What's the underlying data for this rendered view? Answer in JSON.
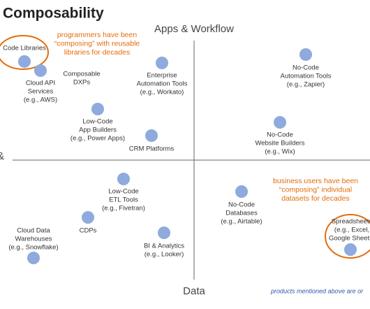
{
  "title": "Composability",
  "axes": {
    "top": "Apps & Workflow",
    "bottom": "Data",
    "left": "&"
  },
  "annotations": [
    {
      "lines": [
        "programmers have been",
        "“composing” with reusable",
        "libraries for decades"
      ]
    },
    {
      "lines": [
        "business users have been",
        "“composing” individual",
        "datasets for decades"
      ]
    }
  ],
  "nodes": [
    {
      "lines": [
        "Code Libraries"
      ]
    },
    {
      "lines": [
        "Cloud API",
        "Services",
        "(e.g., AWS)"
      ]
    },
    {
      "lines": [
        "Composable",
        "DXPs"
      ]
    },
    {
      "lines": [
        "Low-Code",
        "App Builders",
        "(e.g., Power Apps)"
      ]
    },
    {
      "lines": [
        "Enterprise",
        "Automation Tools",
        "(e.g., Workato)"
      ]
    },
    {
      "lines": [
        "CRM Platforms"
      ]
    },
    {
      "lines": [
        "No-Code",
        "Automation Tools",
        "(e.g., Zapier)"
      ]
    },
    {
      "lines": [
        "No-Code",
        "Website Builders",
        "(e.g., Wix)"
      ]
    },
    {
      "lines": [
        "Low-Code",
        "ETL Tools",
        "(e.g., Fivetran)"
      ]
    },
    {
      "lines": [
        "CDPs"
      ]
    },
    {
      "lines": [
        "Cloud Data",
        "Warehouses",
        "(e.g., Snowflake)"
      ]
    },
    {
      "lines": [
        "BI & Analytics",
        "(e.g., Looker)"
      ]
    },
    {
      "lines": [
        "No-Code",
        "Databases",
        "(e.g., Airtable)"
      ]
    },
    {
      "lines": [
        "Spreadsheets",
        "(e.g., Excel,",
        "Google Sheets)"
      ]
    }
  ],
  "footnote": "products mentioned above are or"
}
